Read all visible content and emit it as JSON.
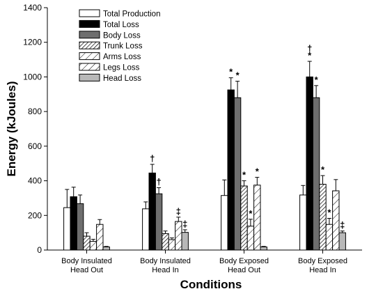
{
  "chart_data": {
    "type": "bar",
    "title": "",
    "xlabel": "Conditions",
    "ylabel": "Energy (kJoules)",
    "ylim": [
      0,
      1400
    ],
    "yticks": [
      0,
      200,
      400,
      600,
      800,
      1000,
      1200,
      1400
    ],
    "grid": false,
    "legend_position": "top-left",
    "categories": [
      [
        "Body Insulated",
        "Head Out"
      ],
      [
        "Body Insulated",
        "Head In"
      ],
      [
        "Body Exposed",
        "Head Out"
      ],
      [
        "Body Exposed",
        "Head In"
      ]
    ],
    "series": [
      {
        "name": "Total Production",
        "fill": "white",
        "values": [
          245,
          238,
          315,
          318
        ],
        "errors": [
          105,
          40,
          90,
          55
        ],
        "marks": [
          "",
          "",
          "",
          ""
        ]
      },
      {
        "name": "Total Loss",
        "fill": "black",
        "values": [
          308,
          445,
          925,
          1000
        ],
        "errors": [
          55,
          50,
          70,
          90
        ],
        "marks": [
          "",
          "†",
          "*",
          "†\n*"
        ]
      },
      {
        "name": "Body Loss",
        "fill": "gray",
        "values": [
          268,
          325,
          880,
          880
        ],
        "errors": [
          50,
          35,
          95,
          70
        ],
        "marks": [
          "",
          "†",
          "*",
          "*"
        ]
      },
      {
        "name": "Trunk Loss",
        "fill": "dense",
        "values": [
          80,
          95,
          370,
          380
        ],
        "errors": [
          20,
          15,
          30,
          50
        ],
        "marks": [
          "",
          "",
          "*",
          "*"
        ]
      },
      {
        "name": "Arms Loss",
        "fill": "sparse",
        "values": [
          50,
          60,
          138,
          148
        ],
        "errors": [
          12,
          10,
          40,
          35
        ],
        "marks": [
          "",
          "",
          "*",
          "*"
        ]
      },
      {
        "name": "Legs Loss",
        "fill": "sparse",
        "values": [
          148,
          165,
          375,
          342
        ],
        "errors": [
          28,
          25,
          45,
          65
        ],
        "marks": [
          "",
          "‡",
          "*",
          ""
        ]
      },
      {
        "name": "Head Loss",
        "fill": "light",
        "values": [
          18,
          102,
          18,
          100
        ],
        "errors": [
          3,
          15,
          3,
          10
        ],
        "marks": [
          "",
          "‡",
          "",
          "‡"
        ]
      }
    ],
    "colors": {
      "black": "#000000",
      "gray": "#6e6e6e",
      "light": "#b8b8b8",
      "white": "#ffffff"
    }
  }
}
